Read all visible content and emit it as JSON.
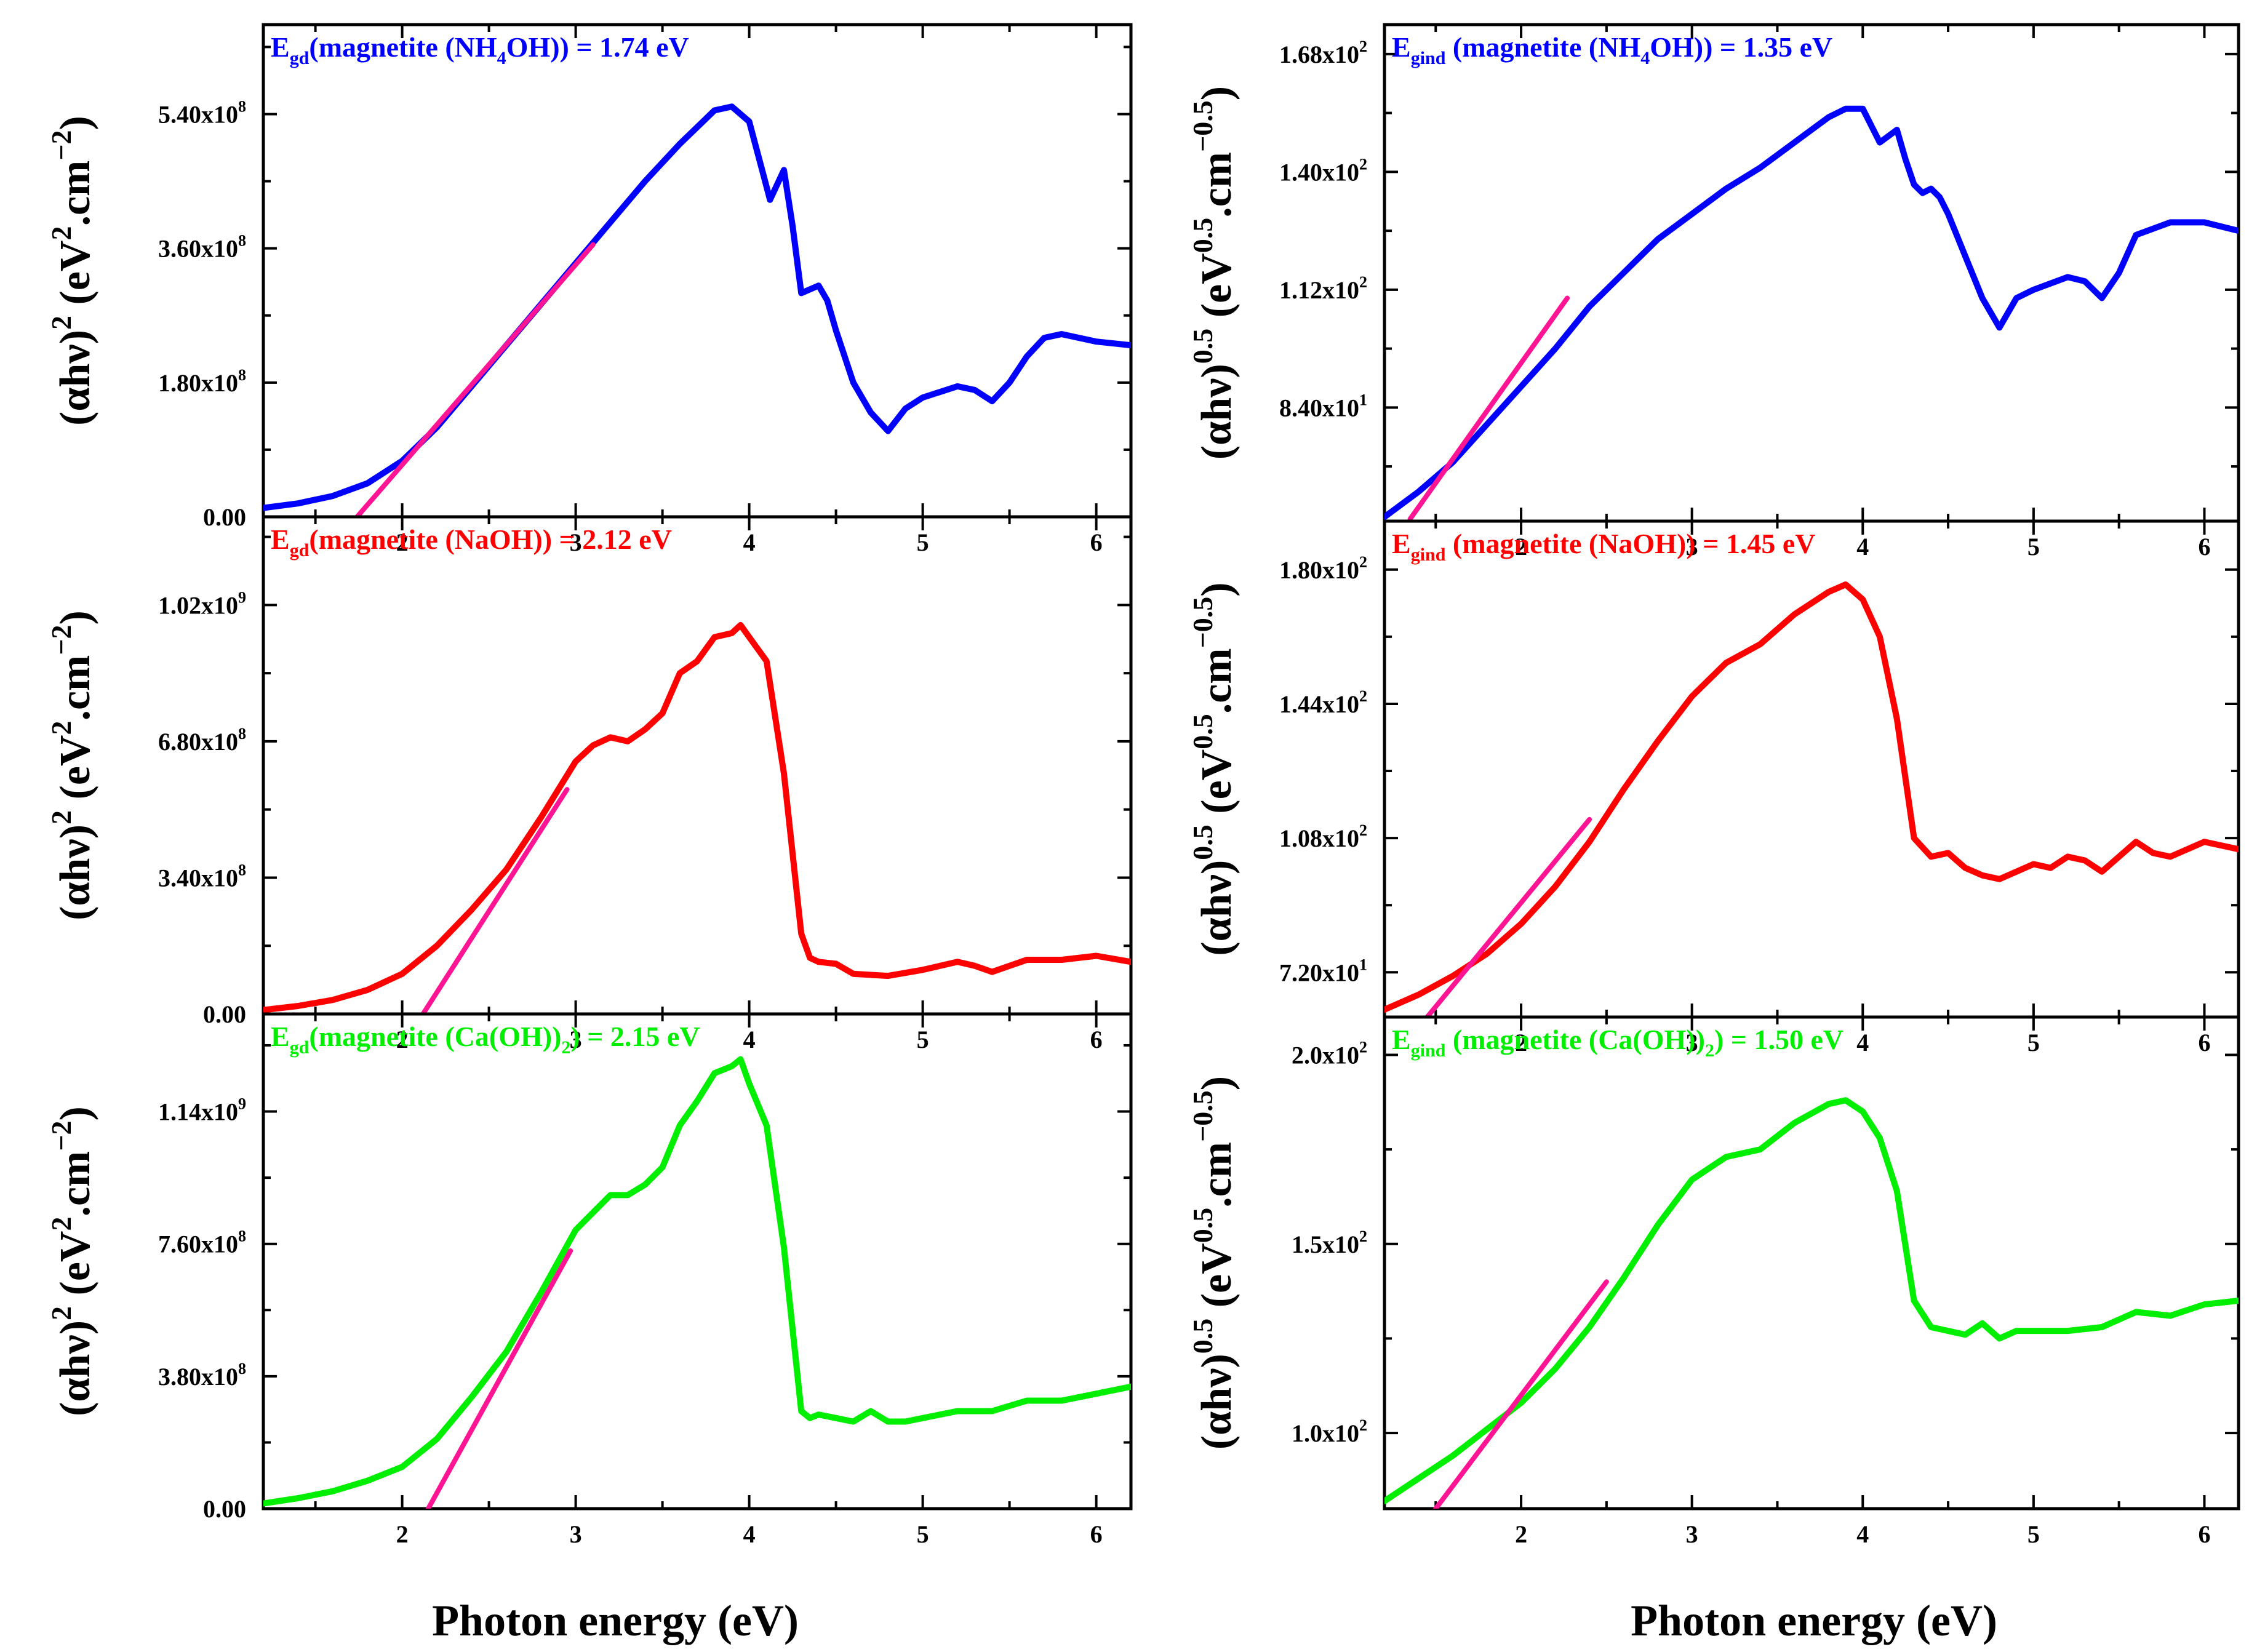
{
  "figure": {
    "x_axis_label": "Photon energy (eV)",
    "direct_y_label": "(αhν)² (eV².cm⁻²)",
    "indirect_y_label": "(αhν)⁰·⁵ (eV⁰·⁵.cm⁻⁰·⁵)"
  },
  "chart_data": [
    {
      "type": "line",
      "panel": "direct-nh4oh",
      "title": "Egd(magnetite (NH4OH)) = 1.74 eV",
      "label": {
        "sym": "E",
        "sub": "gd",
        "pre": "(magnetite (NH",
        "sub2": "4",
        "post": "OH)) = 1.74 eV"
      },
      "color": "#0000ff",
      "xlim": [
        1.2,
        6.2
      ],
      "ylim": [
        0,
        660000000.0
      ],
      "xticks": [
        2,
        3,
        4,
        5,
        6
      ],
      "yticks": [
        0,
        180000000.0,
        360000000.0,
        540000000.0
      ],
      "ytick_labels": [
        {
          "m": "0.00",
          "e": ""
        },
        {
          "m": "1.80x10",
          "e": "8"
        },
        {
          "m": "3.60x10",
          "e": "8"
        },
        {
          "m": "5.40x10",
          "e": "8"
        }
      ],
      "series": [
        {
          "name": "(αhν)^2",
          "x": [
            1.2,
            1.4,
            1.6,
            1.8,
            2.0,
            2.2,
            2.4,
            2.6,
            2.8,
            3.0,
            3.2,
            3.4,
            3.6,
            3.8,
            3.9,
            4.0,
            4.08,
            4.12,
            4.2,
            4.25,
            4.3,
            4.35,
            4.4,
            4.45,
            4.5,
            4.6,
            4.7,
            4.8,
            4.9,
            5.0,
            5.2,
            5.3,
            5.4,
            5.5,
            5.6,
            5.7,
            5.8,
            6.0,
            6.2
          ],
          "y": [
            12000000.0,
            18000000.0,
            28000000.0,
            45000000.0,
            75000000.0,
            120000000.0,
            175000000.0,
            230000000.0,
            285000000.0,
            340000000.0,
            395000000.0,
            450000000.0,
            500000000.0,
            545000000.0,
            550000000.0,
            530000000.0,
            460000000.0,
            425000000.0,
            465000000.0,
            390000000.0,
            300000000.0,
            305000000.0,
            310000000.0,
            290000000.0,
            250000000.0,
            180000000.0,
            140000000.0,
            115000000.0,
            145000000.0,
            160000000.0,
            175000000.0,
            170000000.0,
            155000000.0,
            180000000.0,
            215000000.0,
            240000000.0,
            245000000.0,
            235000000.0,
            230000000.0
          ]
        }
      ],
      "fit": {
        "x": [
          1.74,
          3.1
        ],
        "y": [
          0,
          365000000.0
        ]
      }
    },
    {
      "type": "line",
      "panel": "indirect-nh4oh",
      "title": "Egind (magnetite (NH4OH)) = 1.35 eV",
      "label": {
        "sym": "E",
        "sub": "gind",
        "pre": " (magnetite (NH",
        "sub2": "4",
        "post": "OH)) = 1.35 eV"
      },
      "color": "#0000ff",
      "xlim": [
        1.2,
        6.2
      ],
      "ylim": [
        57,
        175
      ],
      "xticks": [
        2,
        3,
        4,
        5,
        6
      ],
      "yticks": [
        84,
        112,
        140,
        168
      ],
      "ytick_labels": [
        {
          "m": "8.40x10",
          "e": "1"
        },
        {
          "m": "1.12x10",
          "e": "2"
        },
        {
          "m": "1.40x10",
          "e": "2"
        },
        {
          "m": "1.68x10",
          "e": "2"
        }
      ],
      "series": [
        {
          "name": "(αhν)^0.5",
          "x": [
            1.2,
            1.4,
            1.6,
            1.8,
            2.0,
            2.2,
            2.4,
            2.6,
            2.8,
            3.0,
            3.2,
            3.4,
            3.6,
            3.8,
            3.9,
            4.0,
            4.1,
            4.2,
            4.25,
            4.3,
            4.35,
            4.4,
            4.45,
            4.5,
            4.6,
            4.7,
            4.8,
            4.9,
            5.0,
            5.2,
            5.3,
            5.4,
            5.5,
            5.6,
            5.8,
            6.0,
            6.2
          ],
          "y": [
            58,
            64,
            71,
            80,
            89,
            98,
            108,
            116,
            124,
            130,
            136,
            141,
            147,
            153,
            155,
            155,
            147,
            150,
            143,
            137,
            135,
            136,
            134,
            130,
            120,
            110,
            103,
            110,
            112,
            115,
            114,
            110,
            116,
            125,
            128,
            128,
            126
          ]
        }
      ],
      "fit": {
        "x": [
          1.35,
          2.27
        ],
        "y": [
          57.5,
          110
        ]
      }
    },
    {
      "type": "line",
      "panel": "direct-naoh",
      "title": "Egd(magnetite (NaOH)) = 2.12 eV",
      "label": {
        "sym": "E",
        "sub": "gd",
        "pre": "(magnetite (NaOH)) = 2.12 eV",
        "sub2": "",
        "post": ""
      },
      "color": "#ff0000",
      "xlim": [
        1.2,
        6.2
      ],
      "ylim": [
        0,
        1240000000.0
      ],
      "xticks": [
        2,
        3,
        4,
        5,
        6
      ],
      "yticks": [
        0,
        340000000.0,
        680000000.0,
        1020000000.0
      ],
      "ytick_labels": [
        {
          "m": "0.00",
          "e": ""
        },
        {
          "m": "3.40x10",
          "e": "8"
        },
        {
          "m": "6.80x10",
          "e": "8"
        },
        {
          "m": "1.02x10",
          "e": "9"
        }
      ],
      "series": [
        {
          "name": "(αhν)^2",
          "x": [
            1.2,
            1.4,
            1.6,
            1.8,
            2.0,
            2.2,
            2.4,
            2.6,
            2.8,
            3.0,
            3.1,
            3.2,
            3.3,
            3.4,
            3.5,
            3.6,
            3.7,
            3.8,
            3.9,
            3.95,
            4.0,
            4.1,
            4.2,
            4.3,
            4.35,
            4.4,
            4.5,
            4.6,
            4.8,
            5.0,
            5.2,
            5.3,
            5.4,
            5.6,
            5.8,
            6.0,
            6.2
          ],
          "y": [
            10000000.0,
            20000000.0,
            35000000.0,
            60000000.0,
            100000000.0,
            170000000.0,
            260000000.0,
            360000000.0,
            490000000.0,
            630000000.0,
            670000000.0,
            690000000.0,
            680000000.0,
            710000000.0,
            750000000.0,
            850000000.0,
            880000000.0,
            940000000.0,
            950000000.0,
            970000000.0,
            940000000.0,
            880000000.0,
            600000000.0,
            200000000.0,
            140000000.0,
            130000000.0,
            125000000.0,
            100000000.0,
            95000000.0,
            110000000.0,
            130000000.0,
            120000000.0,
            105000000.0,
            135000000.0,
            135000000.0,
            145000000.0,
            130000000.0
          ]
        }
      ],
      "fit": {
        "x": [
          2.12,
          2.95
        ],
        "y": [
          0,
          560000000.0
        ]
      }
    },
    {
      "type": "line",
      "panel": "indirect-naoh",
      "title": "Egind (magnetite (NaOH)) = 1.45 eV",
      "label": {
        "sym": "E",
        "sub": "gind",
        "pre": " (magnetite (NaOH)) = 1.45 eV",
        "sub2": "",
        "post": ""
      },
      "color": "#ff0000",
      "xlim": [
        1.2,
        6.2
      ],
      "ylim": [
        60,
        193
      ],
      "xticks": [
        2,
        3,
        4,
        5,
        6
      ],
      "yticks": [
        72,
        108,
        144,
        180
      ],
      "ytick_labels": [
        {
          "m": "7.20x10",
          "e": "1"
        },
        {
          "m": "1.08x10",
          "e": "2"
        },
        {
          "m": "1.44x10",
          "e": "2"
        },
        {
          "m": "1.80x10",
          "e": "2"
        }
      ],
      "series": [
        {
          "name": "(αhν)^0.5",
          "x": [
            1.2,
            1.4,
            1.6,
            1.8,
            2.0,
            2.2,
            2.4,
            2.6,
            2.8,
            3.0,
            3.2,
            3.4,
            3.6,
            3.8,
            3.9,
            4.0,
            4.1,
            4.2,
            4.3,
            4.4,
            4.5,
            4.6,
            4.7,
            4.8,
            4.9,
            5.0,
            5.1,
            5.2,
            5.3,
            5.4,
            5.5,
            5.6,
            5.7,
            5.8,
            6.0,
            6.2
          ],
          "y": [
            62,
            66,
            71,
            77,
            85,
            95,
            107,
            121,
            134,
            146,
            155,
            160,
            168,
            174,
            176,
            172,
            162,
            140,
            108,
            103,
            104,
            100,
            98,
            97,
            99,
            101,
            100,
            103,
            102,
            99,
            103,
            107,
            104,
            103,
            107,
            105
          ]
        }
      ],
      "fit": {
        "x": [
          1.45,
          2.4
        ],
        "y": [
          60,
          113
        ]
      }
    },
    {
      "type": "line",
      "panel": "direct-caoh2",
      "title": "Egd(magnetite (Ca(OH))2) = 2.15 eV",
      "label": {
        "sym": "E",
        "sub": "gd",
        "pre": "(magnetite (Ca(OH))",
        "sub2": "2",
        "post": ") = 2.15 eV"
      },
      "color": "#00ee00",
      "xlim": [
        1.2,
        6.2
      ],
      "ylim": [
        0,
        1420000000.0
      ],
      "xticks": [
        2,
        3,
        4,
        5,
        6
      ],
      "yticks": [
        0,
        380000000.0,
        760000000.0,
        1140000000.0
      ],
      "ytick_labels": [
        {
          "m": "0.00",
          "e": ""
        },
        {
          "m": "3.80x10",
          "e": "8"
        },
        {
          "m": "7.60x10",
          "e": "8"
        },
        {
          "m": "1.14x10",
          "e": "9"
        }
      ],
      "series": [
        {
          "name": "(αhν)^2",
          "x": [
            1.2,
            1.4,
            1.6,
            1.8,
            2.0,
            2.2,
            2.4,
            2.6,
            2.8,
            3.0,
            3.1,
            3.2,
            3.3,
            3.4,
            3.5,
            3.6,
            3.7,
            3.8,
            3.9,
            3.95,
            4.0,
            4.1,
            4.2,
            4.3,
            4.35,
            4.4,
            4.5,
            4.6,
            4.7,
            4.8,
            4.9,
            5.0,
            5.2,
            5.4,
            5.6,
            5.8,
            6.0,
            6.2
          ],
          "y": [
            15000000.0,
            30000000.0,
            50000000.0,
            80000000.0,
            120000000.0,
            200000000.0,
            320000000.0,
            450000000.0,
            620000000.0,
            800000000.0,
            850000000.0,
            900000000.0,
            900000000.0,
            930000000.0,
            980000000.0,
            1100000000.0,
            1170000000.0,
            1250000000.0,
            1270000000.0,
            1290000000.0,
            1220000000.0,
            1100000000.0,
            750000000.0,
            280000000.0,
            260000000.0,
            270000000.0,
            260000000.0,
            250000000.0,
            280000000.0,
            250000000.0,
            250000000.0,
            260000000.0,
            280000000.0,
            280000000.0,
            310000000.0,
            310000000.0,
            330000000.0,
            350000000.0
          ]
        }
      ],
      "fit": {
        "x": [
          2.15,
          2.97
        ],
        "y": [
          0,
          740000000.0
        ]
      }
    },
    {
      "type": "line",
      "panel": "indirect-caoh2",
      "title": "Egind (magnetite (Ca(OH))2) = 1.50 eV",
      "label": {
        "sym": "E",
        "sub": "gind",
        "pre": " (magnetite (Ca(OH))",
        "sub2": "2",
        "post": ") = 1.50 eV"
      },
      "color": "#00ee00",
      "xlim": [
        1.2,
        6.2
      ],
      "ylim": [
        80,
        210
      ],
      "xticks": [
        2,
        3,
        4,
        5,
        6
      ],
      "yticks": [
        100,
        150,
        200
      ],
      "ytick_labels": [
        {
          "m": "1.0x10",
          "e": "2"
        },
        {
          "m": "1.5x10",
          "e": "2"
        },
        {
          "m": "2.0x10",
          "e": "2"
        }
      ],
      "series": [
        {
          "name": "(αhν)^0.5",
          "x": [
            1.2,
            1.4,
            1.6,
            1.8,
            2.0,
            2.2,
            2.4,
            2.6,
            2.8,
            3.0,
            3.2,
            3.4,
            3.6,
            3.8,
            3.9,
            4.0,
            4.1,
            4.2,
            4.3,
            4.4,
            4.5,
            4.6,
            4.7,
            4.8,
            4.9,
            5.0,
            5.2,
            5.4,
            5.6,
            5.8,
            6.0,
            6.2
          ],
          "y": [
            82,
            88,
            94,
            101,
            108,
            117,
            128,
            141,
            155,
            167,
            173,
            175,
            182,
            187,
            188,
            185,
            178,
            164,
            135,
            128,
            127,
            126,
            129,
            125,
            127,
            127,
            127,
            128,
            132,
            131,
            134,
            135
          ]
        }
      ],
      "fit": {
        "x": [
          1.5,
          2.5
        ],
        "y": [
          80,
          140
        ]
      }
    }
  ]
}
